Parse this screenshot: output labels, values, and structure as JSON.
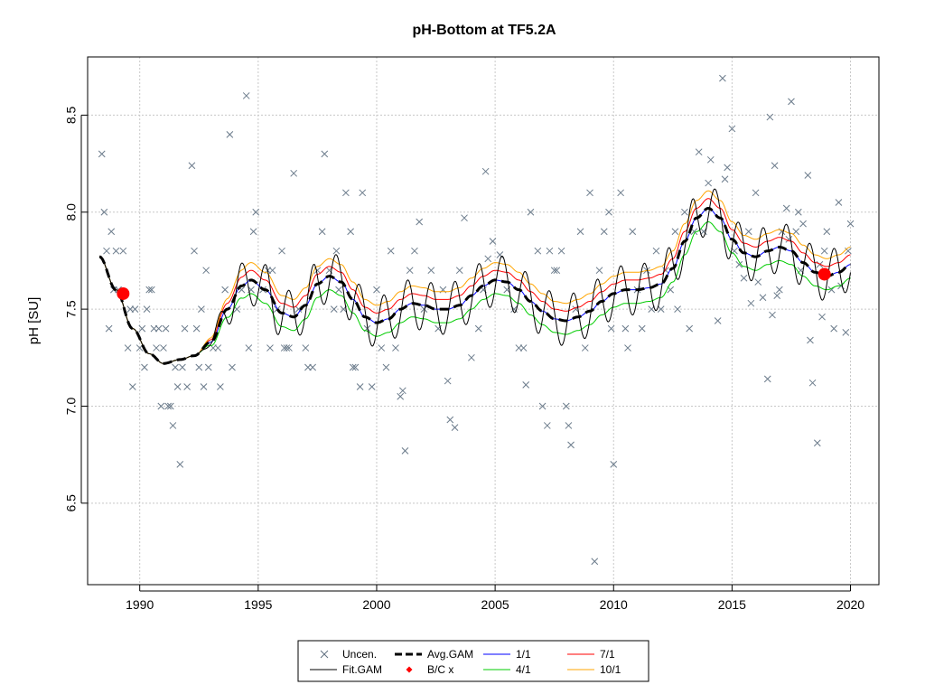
{
  "chart_data": {
    "type": "line",
    "title": "pH-Bottom at TF5.2A",
    "xlabel": "",
    "ylabel": "pH [SU]",
    "xlim": [
      1987.8,
      2021.2
    ],
    "ylim": [
      6.08,
      8.8
    ],
    "x_ticks": [
      1990,
      1995,
      2000,
      2005,
      2010,
      2015,
      2020
    ],
    "y_ticks": [
      6.5,
      7.0,
      7.5,
      8.0,
      8.5
    ],
    "x_tick_labels": [
      "1990",
      "1995",
      "2000",
      "2005",
      "2010",
      "2015",
      "2020"
    ],
    "y_tick_labels": [
      "6.5",
      "7.0",
      "7.5",
      "8.0",
      "8.5"
    ],
    "grid": true,
    "legend_position": "bottom-center",
    "legend": [
      {
        "label": "Uncen.",
        "symbol": "x",
        "color": "#607080"
      },
      {
        "label": "Avg.GAM",
        "symbol": "dashed-line",
        "color": "#000000"
      },
      {
        "label": "1/1",
        "symbol": "line",
        "color": "#0000ff"
      },
      {
        "label": "7/1",
        "symbol": "line",
        "color": "#ff0000"
      },
      {
        "label": "Fit.GAM",
        "symbol": "line",
        "color": "#000000"
      },
      {
        "label": "B/C x",
        "symbol": "diamond",
        "color": "#ff0000"
      },
      {
        "label": "4/1",
        "symbol": "line",
        "color": "#00cc00"
      },
      {
        "label": "10/1",
        "symbol": "line",
        "color": "#ffa500"
      }
    ],
    "avg_gam": {
      "x": [
        1988.3,
        1989,
        1989.7,
        1990.4,
        1991,
        1991.7,
        1992.3,
        1993,
        1993.7,
        1994.3,
        1994.7,
        1995.3,
        1996,
        1996.5,
        1997,
        1997.5,
        1998,
        1998.5,
        1999,
        1999.5,
        2000,
        2000.5,
        2001,
        2001.5,
        2002,
        2002.5,
        2003,
        2003.5,
        2004,
        2004.5,
        2005,
        2005.5,
        2006,
        2006.5,
        2007,
        2007.5,
        2008,
        2008.5,
        2009,
        2009.5,
        2010,
        2010.5,
        2011,
        2011.5,
        2012,
        2012.5,
        2013,
        2013.5,
        2014,
        2014.5,
        2015,
        2015.5,
        2016,
        2016.5,
        2017,
        2017.5,
        2018,
        2018.5,
        2019,
        2019.5,
        2020
      ],
      "y": [
        7.77,
        7.6,
        7.4,
        7.27,
        7.22,
        7.24,
        7.26,
        7.33,
        7.5,
        7.62,
        7.65,
        7.6,
        7.48,
        7.46,
        7.52,
        7.63,
        7.67,
        7.64,
        7.55,
        7.46,
        7.43,
        7.45,
        7.5,
        7.53,
        7.52,
        7.5,
        7.5,
        7.52,
        7.57,
        7.62,
        7.65,
        7.64,
        7.6,
        7.54,
        7.49,
        7.45,
        7.44,
        7.46,
        7.49,
        7.54,
        7.58,
        7.6,
        7.6,
        7.61,
        7.63,
        7.71,
        7.85,
        7.97,
        8.02,
        7.97,
        7.86,
        7.79,
        7.77,
        7.8,
        7.82,
        7.8,
        7.74,
        7.69,
        7.67,
        7.69,
        7.73
      ]
    },
    "offsets": {
      "1/1": 0.0,
      "7/1": 0.05,
      "4/1": -0.07,
      "10/1": 0.09
    },
    "fit_gam_amplitude": 0.13,
    "uncen": [
      [
        1988.4,
        8.3
      ],
      [
        1988.5,
        8.0
      ],
      [
        1988.6,
        7.8
      ],
      [
        1988.7,
        7.4
      ],
      [
        1988.8,
        7.9
      ],
      [
        1988.9,
        7.6
      ],
      [
        1989.0,
        7.8
      ],
      [
        1989.1,
        7.6
      ],
      [
        1989.3,
        7.8
      ],
      [
        1989.5,
        7.3
      ],
      [
        1989.6,
        7.5
      ],
      [
        1989.7,
        7.1
      ],
      [
        1989.8,
        7.5
      ],
      [
        1990.0,
        7.3
      ],
      [
        1990.1,
        7.4
      ],
      [
        1990.2,
        7.2
      ],
      [
        1990.3,
        7.5
      ],
      [
        1990.4,
        7.6
      ],
      [
        1990.5,
        7.6
      ],
      [
        1990.6,
        7.4
      ],
      [
        1990.7,
        7.3
      ],
      [
        1990.8,
        7.4
      ],
      [
        1990.9,
        7.0
      ],
      [
        1991.0,
        7.3
      ],
      [
        1991.1,
        7.4
      ],
      [
        1991.2,
        7.0
      ],
      [
        1991.3,
        7.0
      ],
      [
        1991.4,
        6.9
      ],
      [
        1991.5,
        7.2
      ],
      [
        1991.6,
        7.1
      ],
      [
        1991.7,
        6.7
      ],
      [
        1991.8,
        7.2
      ],
      [
        1991.9,
        7.4
      ],
      [
        1992.0,
        7.1
      ],
      [
        1992.2,
        8.24
      ],
      [
        1992.3,
        7.8
      ],
      [
        1992.4,
        7.4
      ],
      [
        1992.5,
        7.2
      ],
      [
        1992.6,
        7.5
      ],
      [
        1992.7,
        7.1
      ],
      [
        1992.8,
        7.7
      ],
      [
        1992.9,
        7.2
      ],
      [
        1993.1,
        7.3
      ],
      [
        1993.3,
        7.3
      ],
      [
        1993.4,
        7.1
      ],
      [
        1993.6,
        7.6
      ],
      [
        1993.8,
        8.4
      ],
      [
        1993.9,
        7.2
      ],
      [
        1994.1,
        7.5
      ],
      [
        1994.3,
        7.6
      ],
      [
        1994.5,
        8.6
      ],
      [
        1994.6,
        7.3
      ],
      [
        1994.7,
        7.6
      ],
      [
        1994.8,
        7.9
      ],
      [
        1994.9,
        8.0
      ],
      [
        1995.2,
        7.6
      ],
      [
        1995.4,
        7.7
      ],
      [
        1995.5,
        7.3
      ],
      [
        1995.6,
        7.7
      ],
      [
        1995.8,
        7.5
      ],
      [
        1996.0,
        7.8
      ],
      [
        1996.1,
        7.3
      ],
      [
        1996.2,
        7.3
      ],
      [
        1996.3,
        7.3
      ],
      [
        1996.5,
        8.2
      ],
      [
        1996.7,
        7.5
      ],
      [
        1997.0,
        7.3
      ],
      [
        1997.1,
        7.2
      ],
      [
        1997.3,
        7.2
      ],
      [
        1997.5,
        7.7
      ],
      [
        1997.7,
        7.9
      ],
      [
        1997.8,
        8.3
      ],
      [
        1998.0,
        7.7
      ],
      [
        1998.2,
        7.5
      ],
      [
        1998.3,
        7.8
      ],
      [
        1998.4,
        7.6
      ],
      [
        1998.6,
        7.5
      ],
      [
        1998.7,
        8.1
      ],
      [
        1998.9,
        7.9
      ],
      [
        1999.0,
        7.2
      ],
      [
        1999.1,
        7.2
      ],
      [
        1999.3,
        7.1
      ],
      [
        1999.4,
        8.1
      ],
      [
        1999.6,
        7.4
      ],
      [
        1999.8,
        7.1
      ],
      [
        2000.0,
        7.6
      ],
      [
        2000.2,
        7.3
      ],
      [
        2000.4,
        7.2
      ],
      [
        2000.6,
        7.8
      ],
      [
        2000.8,
        7.3
      ],
      [
        2001.0,
        7.05
      ],
      [
        2001.1,
        7.08
      ],
      [
        2001.2,
        6.77
      ],
      [
        2001.4,
        7.7
      ],
      [
        2001.6,
        7.8
      ],
      [
        2001.8,
        7.95
      ],
      [
        2002.0,
        7.5
      ],
      [
        2002.3,
        7.7
      ],
      [
        2002.6,
        7.4
      ],
      [
        2002.8,
        7.6
      ],
      [
        2003.0,
        7.13
      ],
      [
        2003.1,
        6.93
      ],
      [
        2003.3,
        6.89
      ],
      [
        2003.5,
        7.7
      ],
      [
        2003.7,
        7.97
      ],
      [
        2004.0,
        7.25
      ],
      [
        2004.3,
        7.4
      ],
      [
        2004.5,
        7.6
      ],
      [
        2004.6,
        8.21
      ],
      [
        2004.7,
        7.76
      ],
      [
        2004.9,
        7.85
      ],
      [
        2005.2,
        7.78
      ],
      [
        2005.5,
        7.6
      ],
      [
        2005.8,
        7.5
      ],
      [
        2006.0,
        7.3
      ],
      [
        2006.2,
        7.3
      ],
      [
        2006.3,
        7.11
      ],
      [
        2006.5,
        8.0
      ],
      [
        2006.8,
        7.8
      ],
      [
        2007.0,
        7.0
      ],
      [
        2007.2,
        6.9
      ],
      [
        2007.3,
        7.8
      ],
      [
        2007.5,
        7.7
      ],
      [
        2007.6,
        7.7
      ],
      [
        2007.8,
        7.8
      ],
      [
        2008.0,
        7.0
      ],
      [
        2008.1,
        6.9
      ],
      [
        2008.2,
        6.8
      ],
      [
        2008.4,
        7.5
      ],
      [
        2008.6,
        7.9
      ],
      [
        2008.8,
        7.3
      ],
      [
        2009.0,
        8.1
      ],
      [
        2009.2,
        6.2
      ],
      [
        2009.4,
        7.7
      ],
      [
        2009.6,
        7.9
      ],
      [
        2009.8,
        8.0
      ],
      [
        2009.9,
        7.4
      ],
      [
        2010.0,
        6.7
      ],
      [
        2010.3,
        8.1
      ],
      [
        2010.5,
        7.4
      ],
      [
        2010.6,
        7.3
      ],
      [
        2010.8,
        7.9
      ],
      [
        2011.0,
        7.6
      ],
      [
        2011.2,
        7.4
      ],
      [
        2011.4,
        7.7
      ],
      [
        2011.6,
        7.5
      ],
      [
        2011.8,
        7.8
      ],
      [
        2012.0,
        7.5
      ],
      [
        2012.2,
        7.7
      ],
      [
        2012.4,
        7.6
      ],
      [
        2012.6,
        7.9
      ],
      [
        2012.7,
        7.5
      ],
      [
        2013.0,
        8.0
      ],
      [
        2013.2,
        7.4
      ],
      [
        2013.4,
        7.9
      ],
      [
        2013.6,
        8.31
      ],
      [
        2013.8,
        7.9
      ],
      [
        2014.0,
        8.15
      ],
      [
        2014.1,
        8.27
      ],
      [
        2014.4,
        7.44
      ],
      [
        2014.6,
        8.69
      ],
      [
        2014.7,
        8.17
      ],
      [
        2014.8,
        8.23
      ],
      [
        2015.0,
        8.43
      ],
      [
        2015.1,
        7.8
      ],
      [
        2015.3,
        7.73
      ],
      [
        2015.5,
        7.66
      ],
      [
        2015.7,
        7.9
      ],
      [
        2015.8,
        7.53
      ],
      [
        2016.0,
        8.1
      ],
      [
        2016.1,
        7.64
      ],
      [
        2016.3,
        7.56
      ],
      [
        2016.5,
        7.14
      ],
      [
        2016.6,
        8.49
      ],
      [
        2016.7,
        7.47
      ],
      [
        2016.8,
        8.24
      ],
      [
        2016.9,
        7.57
      ],
      [
        2017.0,
        7.6
      ],
      [
        2017.1,
        7.9
      ],
      [
        2017.3,
        8.02
      ],
      [
        2017.4,
        7.86
      ],
      [
        2017.5,
        8.57
      ],
      [
        2017.7,
        7.9
      ],
      [
        2017.8,
        8.0
      ],
      [
        2017.9,
        7.7
      ],
      [
        2018.0,
        7.94
      ],
      [
        2018.2,
        8.19
      ],
      [
        2018.3,
        7.34
      ],
      [
        2018.4,
        7.12
      ],
      [
        2018.6,
        6.81
      ],
      [
        2018.7,
        7.73
      ],
      [
        2018.8,
        7.46
      ],
      [
        2018.9,
        7.8
      ],
      [
        2019.0,
        7.9
      ],
      [
        2019.2,
        7.6
      ],
      [
        2019.3,
        7.4
      ],
      [
        2019.5,
        8.05
      ],
      [
        2019.6,
        7.62
      ],
      [
        2019.8,
        7.38
      ],
      [
        2019.9,
        7.8
      ],
      [
        2020.0,
        7.94
      ]
    ],
    "bc_points": [
      [
        1989.3,
        7.58
      ],
      [
        2018.9,
        7.68
      ]
    ]
  }
}
